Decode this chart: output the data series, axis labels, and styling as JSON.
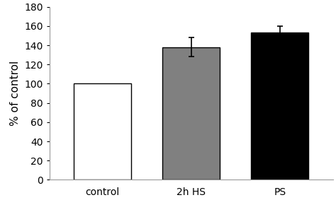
{
  "categories": [
    "control",
    "2h HS",
    "PS"
  ],
  "values": [
    100,
    138,
    153
  ],
  "errors": [
    0,
    10,
    7
  ],
  "bar_colors": [
    "#ffffff",
    "#808080",
    "#000000"
  ],
  "bar_edgecolors": [
    "#000000",
    "#000000",
    "#000000"
  ],
  "ylabel": "% of control",
  "ylim": [
    0,
    180
  ],
  "yticks": [
    0,
    20,
    40,
    60,
    80,
    100,
    120,
    140,
    160,
    180
  ],
  "bar_width": 0.65,
  "ylabel_fontsize": 11,
  "tick_fontsize": 10,
  "xtick_fontsize": 10,
  "background_color": "#ffffff",
  "error_capsize": 3,
  "error_linewidth": 1.2,
  "error_color": "#000000",
  "spine_color": "#999999",
  "spine_linewidth": 0.8
}
